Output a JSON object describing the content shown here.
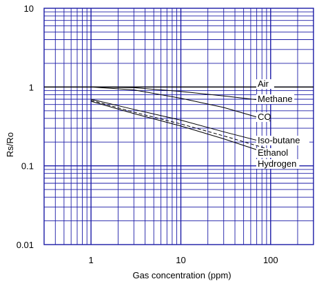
{
  "chart_data": {
    "type": "line",
    "title": "",
    "xlabel": "Gas concentration (ppm)",
    "ylabel": "Rs/Ro",
    "xscale": "log",
    "yscale": "log",
    "xlim": [
      0.3,
      300
    ],
    "ylim": [
      0.01,
      10
    ],
    "xticks": [
      {
        "value": 1,
        "label": "1"
      },
      {
        "value": 10,
        "label": "10"
      },
      {
        "value": 100,
        "label": "100"
      }
    ],
    "yticks": [
      {
        "value": 0.01,
        "label": "0.01"
      },
      {
        "value": 0.1,
        "label": "0.1"
      },
      {
        "value": 1,
        "label": "1"
      },
      {
        "value": 10,
        "label": "10"
      }
    ],
    "grid": true,
    "grid_color": "#1a1aa6",
    "line_color": "#000000",
    "series": [
      {
        "name": "Air",
        "style": "solid",
        "x": [
          0.3,
          300
        ],
        "y": [
          1.0,
          1.0
        ]
      },
      {
        "name": "Methane",
        "style": "solid",
        "x": [
          1,
          3,
          10,
          30,
          100
        ],
        "y": [
          1.0,
          0.98,
          0.88,
          0.77,
          0.66
        ]
      },
      {
        "name": "CO",
        "style": "solid",
        "x": [
          1,
          3,
          10,
          30,
          100
        ],
        "y": [
          1.0,
          0.92,
          0.72,
          0.55,
          0.37
        ]
      },
      {
        "name": "Iso-butane",
        "style": "solid",
        "x": [
          1,
          3,
          10,
          30,
          100
        ],
        "y": [
          0.7,
          0.52,
          0.38,
          0.27,
          0.19
        ]
      },
      {
        "name": "Ethanol",
        "style": "dashed",
        "x": [
          1,
          3,
          10,
          30,
          100
        ],
        "y": [
          0.68,
          0.48,
          0.34,
          0.24,
          0.16
        ]
      },
      {
        "name": "Hydrogen",
        "style": "solid",
        "x": [
          1,
          3,
          10,
          30,
          100
        ],
        "y": [
          0.66,
          0.46,
          0.32,
          0.22,
          0.14
        ]
      }
    ]
  }
}
